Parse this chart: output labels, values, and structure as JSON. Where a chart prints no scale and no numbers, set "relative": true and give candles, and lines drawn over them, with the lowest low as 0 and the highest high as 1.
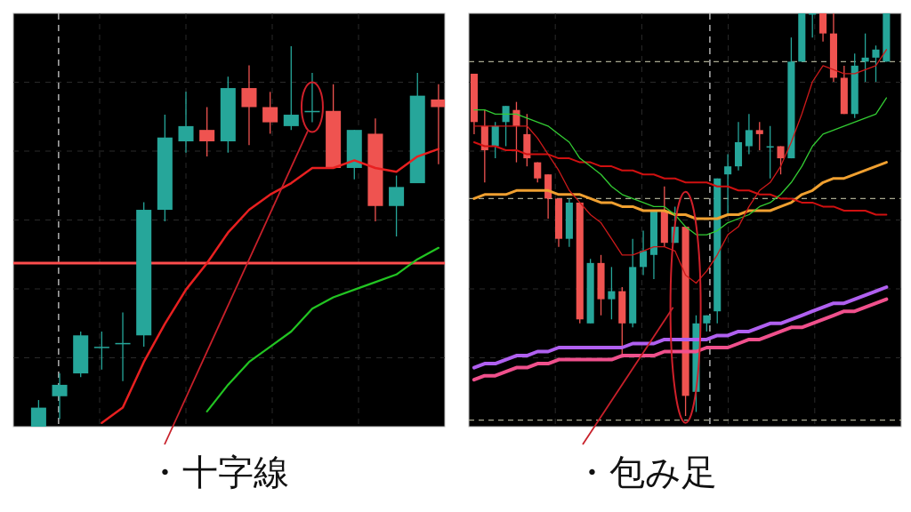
{
  "chart_data": [
    {
      "type": "candlestick",
      "relative": true,
      "grid": true,
      "categories": [
        null,
        null,
        null,
        null,
        null,
        null,
        null,
        null,
        null,
        null,
        null,
        null,
        null,
        null,
        null,
        null,
        null,
        null,
        null,
        null
      ],
      "ohlc": [
        [
          0,
          0.07,
          0,
          0.05
        ],
        [
          0.08,
          0.14,
          0.02,
          0.11
        ],
        [
          0.14,
          0.25,
          0.13,
          0.24
        ],
        [
          0.21,
          0.25,
          0.15,
          0.21
        ],
        [
          0.22,
          0.3,
          0.12,
          0.22
        ],
        [
          0.24,
          0.59,
          0.21,
          0.57
        ],
        [
          0.57,
          0.82,
          0.54,
          0.76
        ],
        [
          0.75,
          0.88,
          0.72,
          0.79
        ],
        [
          0.78,
          0.84,
          0.71,
          0.75
        ],
        [
          0.75,
          0.92,
          0.72,
          0.89
        ],
        [
          0.89,
          0.95,
          0.74,
          0.84
        ],
        [
          0.84,
          0.88,
          0.77,
          0.8
        ],
        [
          0.79,
          1,
          0.78,
          0.82
        ],
        [
          0.83,
          0.93,
          0.8,
          0.83
        ],
        [
          0.83,
          0.9,
          0.68,
          0.68
        ],
        [
          0.68,
          0.78,
          0.65,
          0.78
        ],
        [
          0.77,
          0.81,
          0.54,
          0.58
        ],
        [
          0.58,
          0.66,
          0.5,
          0.63
        ],
        [
          0.64,
          0.93,
          0.64,
          0.87
        ],
        [
          0.86,
          0.9,
          0.69,
          0.84
        ]
      ],
      "colors": [
        "#26a69a",
        "#26a69a",
        "#26a69a",
        "#26a69a",
        "#26a69a",
        "#26a69a",
        "#26a69a",
        "#26a69a",
        "#ef5350",
        "#26a69a",
        "#ef5350",
        "#ef5350",
        "#26a69a",
        "#26a69a",
        "#ef5350",
        "#26a69a",
        "#ef5350",
        "#26a69a",
        "#26a69a",
        "#ef5350"
      ],
      "series": [
        {
          "type": "line",
          "color": "#e82020",
          "values": [
            null,
            null,
            null,
            0.01,
            0.05,
            0.17,
            0.27,
            0.36,
            0.43,
            0.51,
            0.57,
            0.61,
            0.64,
            0.68,
            0.68,
            0.7,
            0.68,
            0.67,
            0.71,
            0.73
          ]
        },
        {
          "type": "line",
          "color": "#22c422",
          "values": [
            null,
            null,
            null,
            null,
            null,
            null,
            null,
            null,
            0.04,
            0.11,
            0.17,
            0.21,
            0.25,
            0.31,
            0.34,
            0.36,
            0.38,
            0.4,
            0.44,
            0.47
          ]
        }
      ],
      "ref_lines": [
        {
          "axis": "y",
          "value": 0.43,
          "color": "#ff4d4d"
        }
      ],
      "annotations": [
        "・十字線"
      ]
    },
    {
      "type": "candlestick",
      "relative": true,
      "grid": true,
      "categories": [
        null,
        null,
        null,
        null,
        null,
        null,
        null,
        null,
        null,
        null,
        null,
        null,
        null,
        null,
        null,
        null,
        null,
        null,
        null,
        null,
        null,
        null,
        null,
        null,
        null,
        null,
        null,
        null,
        null,
        null,
        null,
        null,
        null,
        null,
        null,
        null,
        null,
        null,
        null,
        null
      ],
      "ohlc": [
        [
          0.85,
          0.85,
          0.7,
          0.73
        ],
        [
          0.72,
          0.76,
          0.58,
          0.66
        ],
        [
          0.67,
          0.73,
          0.64,
          0.72
        ],
        [
          0.73,
          0.77,
          0.67,
          0.77
        ],
        [
          0.76,
          0.78,
          0.63,
          0.72
        ],
        [
          0.7,
          0.75,
          0.62,
          0.64
        ],
        [
          0.63,
          0.63,
          0.58,
          0.59
        ],
        [
          0.6,
          0.6,
          0.49,
          0.54
        ],
        [
          0.54,
          0.54,
          0.42,
          0.44
        ],
        [
          0.44,
          0.54,
          0.42,
          0.53
        ],
        [
          0.53,
          0.53,
          0.23,
          0.24
        ],
        [
          0.23,
          0.39,
          0.23,
          0.38
        ],
        [
          0.38,
          0.4,
          0.25,
          0.29
        ],
        [
          0.29,
          0.37,
          0.24,
          0.31
        ],
        [
          0.31,
          0.32,
          0.15,
          0.23
        ],
        [
          0.23,
          0.44,
          0.22,
          0.37
        ],
        [
          0.37,
          0.46,
          0.35,
          0.41
        ],
        [
          0.4,
          0.51,
          0.34,
          0.51
        ],
        [
          0.51,
          0.57,
          0.42,
          0.43
        ],
        [
          0.43,
          0.52,
          0.43,
          0.47
        ],
        [
          0.47,
          0.47,
          0,
          0.05
        ],
        [
          0.06,
          0.25,
          0.01,
          0.23
        ],
        [
          0.23,
          0.25,
          0.21,
          0.25
        ],
        [
          0.26,
          0.59,
          0.23,
          0.59
        ],
        [
          0.6,
          0.65,
          0.5,
          0.62
        ],
        [
          0.62,
          0.73,
          0.61,
          0.68
        ],
        [
          0.67,
          0.75,
          0.65,
          0.71
        ],
        [
          0.71,
          0.73,
          0.66,
          0.7
        ],
        [
          0.67,
          0.72,
          0.59,
          0.67
        ],
        [
          0.67,
          0.67,
          0.6,
          0.64
        ],
        [
          0.64,
          0.94,
          0.64,
          0.88
        ],
        [
          0.88,
          1,
          0.88,
          1
        ],
        [
          1,
          1,
          0.94,
          1
        ],
        [
          1,
          1,
          0.93,
          0.95
        ],
        [
          0.95,
          1,
          0.83,
          0.84
        ],
        [
          0.84,
          0.87,
          0.75,
          0.75
        ],
        [
          0.75,
          0.9,
          0.74,
          0.87
        ],
        [
          0.88,
          0.95,
          0.83,
          0.89
        ],
        [
          0.89,
          0.92,
          0.83,
          0.91
        ],
        [
          0.88,
          1,
          0.88,
          1
        ]
      ],
      "colors": [
        "#ef5350",
        "#ef5350",
        "#26a69a",
        "#26a69a",
        "#ef5350",
        "#ef5350",
        "#ef5350",
        "#ef5350",
        "#ef5350",
        "#26a69a",
        "#ef5350",
        "#26a69a",
        "#ef5350",
        "#26a69a",
        "#ef5350",
        "#26a69a",
        "#26a69a",
        "#26a69a",
        "#ef5350",
        "#26a69a",
        "#ef5350",
        "#26a69a",
        "#26a69a",
        "#26a69a",
        "#26a69a",
        "#26a69a",
        "#26a69a",
        "#ef5350",
        "#26a69a",
        "#ef5350",
        "#26a69a",
        "#26a69a",
        "#26a69a",
        "#ef5350",
        "#ef5350",
        "#ef5350",
        "#26a69a",
        "#26a69a",
        "#26a69a",
        "#26a69a"
      ],
      "series": [
        {
          "type": "line",
          "color": "#b060f0",
          "values": [
            0.12,
            0.13,
            0.13,
            0.14,
            0.15,
            0.15,
            0.16,
            0.16,
            0.17,
            0.17,
            0.17,
            0.17,
            0.17,
            0.17,
            0.17,
            0.18,
            0.18,
            0.18,
            0.19,
            0.19,
            0.19,
            0.19,
            0.19,
            0.2,
            0.2,
            0.21,
            0.21,
            0.22,
            0.23,
            0.23,
            0.24,
            0.25,
            0.26,
            0.27,
            0.28,
            0.28,
            0.29,
            0.3,
            0.31,
            0.32
          ]
        },
        {
          "type": "line",
          "color": "#f0508c",
          "values": [
            0.09,
            0.1,
            0.1,
            0.11,
            0.12,
            0.12,
            0.13,
            0.13,
            0.14,
            0.14,
            0.14,
            0.14,
            0.14,
            0.14,
            0.15,
            0.15,
            0.15,
            0.15,
            0.16,
            0.16,
            0.16,
            0.16,
            0.17,
            0.17,
            0.17,
            0.18,
            0.19,
            0.19,
            0.2,
            0.21,
            0.22,
            0.22,
            0.23,
            0.24,
            0.25,
            0.26,
            0.26,
            0.27,
            0.28,
            0.29
          ]
        },
        {
          "type": "line",
          "color": "#f0a030",
          "values": [
            0.54,
            0.55,
            0.55,
            0.55,
            0.56,
            0.56,
            0.56,
            0.56,
            0.55,
            0.55,
            0.55,
            0.54,
            0.53,
            0.53,
            0.52,
            0.52,
            0.51,
            0.51,
            0.51,
            0.5,
            0.5,
            0.49,
            0.49,
            0.49,
            0.5,
            0.5,
            0.51,
            0.51,
            0.51,
            0.52,
            0.53,
            0.55,
            0.56,
            0.58,
            0.59,
            0.59,
            0.6,
            0.61,
            0.62,
            0.63
          ]
        },
        {
          "type": "line",
          "color": "#d01010",
          "values": [
            0.68,
            0.67,
            0.67,
            0.66,
            0.66,
            0.65,
            0.65,
            0.65,
            0.64,
            0.64,
            0.63,
            0.63,
            0.62,
            0.62,
            0.61,
            0.61,
            0.6,
            0.6,
            0.59,
            0.59,
            0.58,
            0.58,
            0.58,
            0.57,
            0.57,
            0.56,
            0.56,
            0.55,
            0.55,
            0.54,
            0.54,
            0.53,
            0.53,
            0.52,
            0.52,
            0.51,
            0.51,
            0.51,
            0.5,
            0.5
          ]
        },
        {
          "type": "line",
          "color": "#33cc33",
          "values": [
            0.76,
            0.76,
            0.75,
            0.75,
            0.75,
            0.74,
            0.73,
            0.72,
            0.7,
            0.68,
            0.64,
            0.62,
            0.6,
            0.57,
            0.55,
            0.54,
            0.53,
            0.52,
            0.52,
            0.5,
            0.47,
            0.45,
            0.45,
            0.46,
            0.48,
            0.49,
            0.5,
            0.52,
            0.53,
            0.55,
            0.58,
            0.62,
            0.67,
            0.7,
            0.71,
            0.72,
            0.73,
            0.74,
            0.75,
            0.79
          ]
        },
        {
          "type": "line",
          "color": "#cc1a1a",
          "values": [
            0.72,
            0.72,
            0.72,
            0.72,
            0.72,
            0.72,
            0.69,
            0.65,
            0.61,
            0.56,
            0.53,
            0.5,
            0.48,
            0.44,
            0.4,
            0.4,
            0.41,
            0.42,
            0.42,
            0.41,
            0.35,
            0.33,
            0.36,
            0.4,
            0.45,
            0.47,
            0.52,
            0.56,
            0.58,
            0.62,
            0.68,
            0.75,
            0.83,
            0.87,
            0.86,
            0.85,
            0.85,
            0.86,
            0.87,
            0.91
          ]
        }
      ],
      "ref_lines": [
        {
          "axis": "y",
          "value": 0.88,
          "color": "#a8a890",
          "line_style": "dashed"
        },
        {
          "axis": "y",
          "value": 0.54,
          "color": "#a8a890",
          "line_style": "dashed"
        },
        {
          "axis": "y",
          "value": -0.01,
          "color": "#a8a890",
          "line_style": "dashed"
        }
      ],
      "annotations": [
        "・包み足"
      ]
    }
  ]
}
